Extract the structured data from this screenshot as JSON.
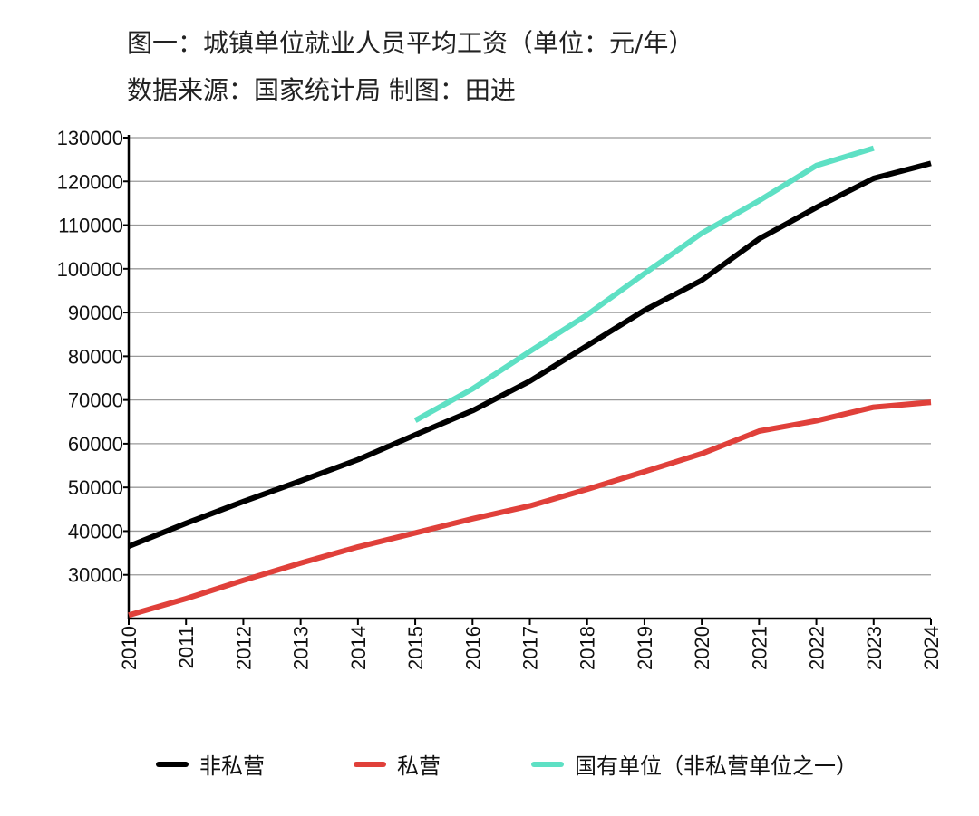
{
  "chart_data": {
    "type": "line",
    "title": "图一：城镇单位就业人员平均工资（单位：元/年）",
    "subtitle": "数据来源：国家统计局 制图：田进",
    "xlabel": "",
    "ylabel": "",
    "x": [
      2010,
      2011,
      2012,
      2013,
      2014,
      2015,
      2016,
      2017,
      2018,
      2019,
      2020,
      2021,
      2022,
      2023,
      2024
    ],
    "ylim": [
      20000,
      130000
    ],
    "yticks": [
      30000,
      40000,
      50000,
      60000,
      70000,
      80000,
      90000,
      100000,
      110000,
      120000,
      130000
    ],
    "grid": true,
    "legend_position": "bottom",
    "series": [
      {
        "name": "非私营",
        "color": "#000000",
        "values": [
          36539,
          41799,
          46769,
          51483,
          56360,
          62029,
          67569,
          74318,
          82413,
          90501,
          97379,
          106837,
          114029,
          120698,
          124110
        ]
      },
      {
        "name": "私营",
        "color": "#e0403a",
        "values": [
          20759,
          24556,
          28752,
          32706,
          36390,
          39589,
          42833,
          45761,
          49575,
          53604,
          57727,
          62884,
          65237,
          68340,
          69476
        ]
      },
      {
        "name": "国有单位（非私营单位之一）",
        "color": "#5ee0c4",
        "values": [
          null,
          null,
          null,
          null,
          null,
          65296,
          72538,
          81114,
          89474,
          98899,
          108132,
          115583,
          123623,
          127600,
          null
        ]
      }
    ]
  }
}
